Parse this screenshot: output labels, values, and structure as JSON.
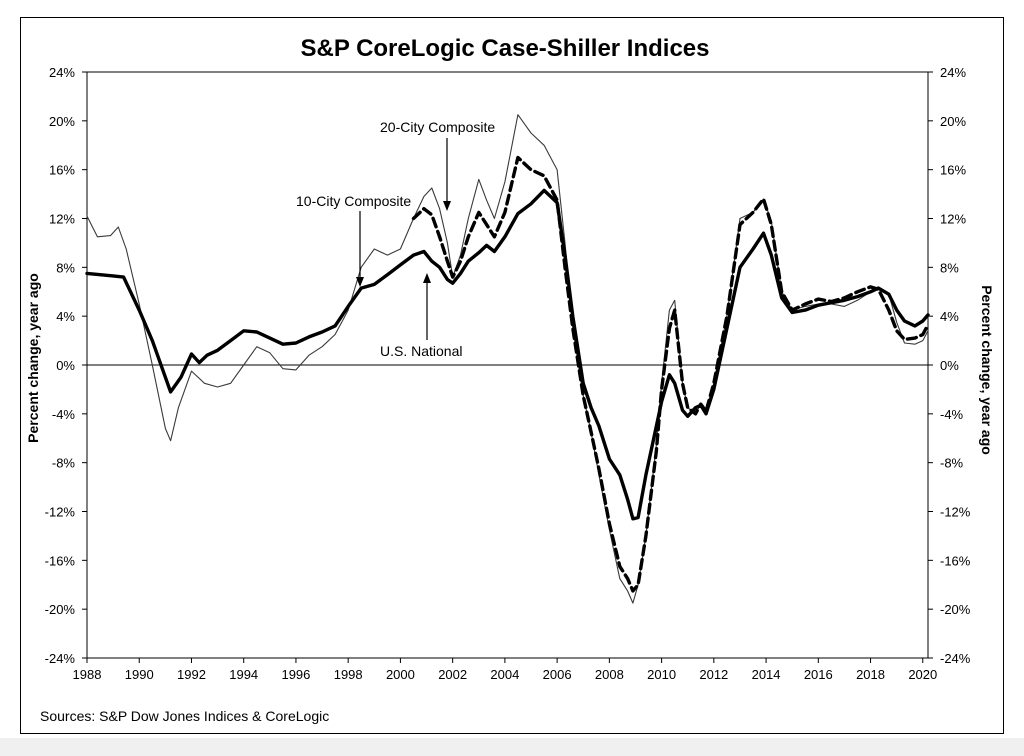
{
  "chart_data": {
    "type": "line",
    "title": "S&P CoreLogic Case-Shiller Indices",
    "ylabel_left": "Percent change, year ago",
    "ylabel_right": "Percent change, year ago",
    "source": "Sources:  S&P Dow Jones Indices & CoreLogic",
    "xlim": [
      1988,
      2020.2
    ],
    "ylim": [
      -24,
      24
    ],
    "x_ticks": [
      1988,
      1990,
      1992,
      1994,
      1996,
      1998,
      2000,
      2002,
      2004,
      2006,
      2008,
      2010,
      2012,
      2014,
      2016,
      2018,
      2020
    ],
    "y_ticks": [
      -24,
      -20,
      -16,
      -12,
      -8,
      -4,
      0,
      4,
      8,
      12,
      16,
      20,
      24
    ],
    "y_tick_format": "percent",
    "grid": false,
    "annotations": [
      {
        "text": "20-City Composite",
        "target_x": 2001.8,
        "target_y": 12.8
      },
      {
        "text": "10-City Composite",
        "target_x": 1998.4,
        "target_y": 6.2
      },
      {
        "text": "U.S. National",
        "target_x": 2001.0,
        "target_y": 7.5
      }
    ],
    "series": [
      {
        "name": "U.S. National",
        "style": "thick",
        "x": [
          1988.0,
          1989.0,
          1989.4,
          1990.0,
          1990.5,
          1991.2,
          1991.6,
          1992.0,
          1992.3,
          1992.6,
          1993.0,
          1993.5,
          1994.0,
          1994.5,
          1995.0,
          1995.5,
          1996.0,
          1996.5,
          1997.0,
          1997.5,
          1998.0,
          1998.5,
          1999.0,
          1999.5,
          2000.0,
          2000.5,
          2000.9,
          2001.2,
          2001.5,
          2001.8,
          2002.0,
          2002.3,
          2002.6,
          2003.0,
          2003.3,
          2003.6,
          2004.0,
          2004.5,
          2005.0,
          2005.5,
          2006.0,
          2006.3,
          2006.6,
          2007.0,
          2007.3,
          2007.6,
          2008.0,
          2008.4,
          2008.7,
          2008.9,
          2009.1,
          2009.4,
          2009.8,
          2010.0,
          2010.3,
          2010.5,
          2010.8,
          2011.0,
          2011.3,
          2011.5,
          2011.7,
          2012.0,
          2012.5,
          2013.0,
          2013.5,
          2013.9,
          2014.2,
          2014.6,
          2015.0,
          2015.5,
          2016.0,
          2016.5,
          2017.0,
          2017.5,
          2018.0,
          2018.3,
          2018.7,
          2019.0,
          2019.3,
          2019.7,
          2020.0,
          2020.2
        ],
        "values": [
          7.5,
          7.3,
          7.2,
          4.5,
          2.0,
          -2.2,
          -1.0,
          0.9,
          0.2,
          0.8,
          1.2,
          2.0,
          2.8,
          2.7,
          2.2,
          1.7,
          1.8,
          2.3,
          2.7,
          3.2,
          4.8,
          6.3,
          6.6,
          7.4,
          8.2,
          9.0,
          9.3,
          8.5,
          8.0,
          7.0,
          6.7,
          7.5,
          8.5,
          9.2,
          9.8,
          9.3,
          10.5,
          12.4,
          13.2,
          14.3,
          13.3,
          9.0,
          4.0,
          -1.5,
          -3.5,
          -5.0,
          -7.7,
          -9.0,
          -11.0,
          -12.6,
          -12.5,
          -9.0,
          -5.0,
          -3.0,
          -0.8,
          -1.5,
          -3.7,
          -4.2,
          -3.5,
          -3.3,
          -4.0,
          -2.0,
          3.0,
          8.0,
          9.5,
          10.8,
          9.0,
          5.5,
          4.3,
          4.5,
          4.9,
          5.1,
          5.3,
          5.6,
          6.0,
          6.3,
          5.8,
          4.5,
          3.6,
          3.2,
          3.6,
          4.1
        ]
      },
      {
        "name": "20-City Composite",
        "style": "dashed",
        "x": [
          2000.5,
          2000.9,
          2001.2,
          2001.5,
          2001.8,
          2002.0,
          2002.3,
          2002.6,
          2003.0,
          2003.3,
          2003.6,
          2004.0,
          2004.5,
          2005.0,
          2005.5,
          2006.0,
          2006.3,
          2006.6,
          2007.0,
          2007.3,
          2007.6,
          2008.0,
          2008.4,
          2008.7,
          2008.9,
          2009.1,
          2009.4,
          2009.8,
          2010.0,
          2010.3,
          2010.5,
          2010.8,
          2011.0,
          2011.3,
          2011.5,
          2011.7,
          2012.0,
          2012.5,
          2013.0,
          2013.5,
          2013.9,
          2014.2,
          2014.6,
          2015.0,
          2015.5,
          2016.0,
          2016.5,
          2017.0,
          2017.5,
          2018.0,
          2018.3,
          2018.7,
          2019.0,
          2019.3,
          2019.7,
          2020.0,
          2020.2
        ],
        "values": [
          12.0,
          12.8,
          12.3,
          10.5,
          8.5,
          7.2,
          8.5,
          10.5,
          12.5,
          11.5,
          10.5,
          12.5,
          17.0,
          16.0,
          15.5,
          13.5,
          8.0,
          3.0,
          -2.5,
          -5.5,
          -8.5,
          -13.0,
          -16.5,
          -17.5,
          -18.5,
          -18.0,
          -14.0,
          -7.0,
          -2.0,
          3.0,
          4.5,
          -1.5,
          -3.5,
          -4.0,
          -3.2,
          -3.8,
          -1.5,
          4.0,
          11.5,
          12.5,
          13.6,
          11.5,
          6.0,
          4.5,
          5.0,
          5.4,
          5.2,
          5.5,
          6.0,
          6.4,
          6.2,
          4.5,
          2.8,
          2.1,
          2.2,
          2.5,
          3.3
        ]
      },
      {
        "name": "10-City Composite",
        "style": "thin",
        "x": [
          1988.0,
          1988.4,
          1988.9,
          1989.2,
          1989.5,
          1990.0,
          1990.5,
          1991.0,
          1991.2,
          1991.5,
          1992.0,
          1992.5,
          1993.0,
          1993.5,
          1994.0,
          1994.5,
          1995.0,
          1995.5,
          1996.0,
          1996.5,
          1997.0,
          1997.5,
          1998.0,
          1998.5,
          1999.0,
          1999.5,
          2000.0,
          2000.5,
          2000.9,
          2001.2,
          2001.5,
          2001.8,
          2002.0,
          2002.3,
          2002.6,
          2003.0,
          2003.3,
          2003.6,
          2004.0,
          2004.5,
          2005.0,
          2005.5,
          2006.0,
          2006.3,
          2006.6,
          2007.0,
          2007.3,
          2007.6,
          2008.0,
          2008.4,
          2008.7,
          2008.9,
          2009.1,
          2009.4,
          2009.8,
          2010.0,
          2010.3,
          2010.5,
          2010.8,
          2011.0,
          2011.3,
          2011.5,
          2011.7,
          2012.0,
          2012.5,
          2013.0,
          2013.5,
          2013.9,
          2014.2,
          2014.6,
          2015.0,
          2015.5,
          2016.0,
          2016.5,
          2017.0,
          2017.5,
          2018.0,
          2018.3,
          2018.7,
          2019.0,
          2019.3,
          2019.7,
          2020.0,
          2020.2
        ],
        "values": [
          12.2,
          10.5,
          10.6,
          11.3,
          9.5,
          5.0,
          0.0,
          -5.2,
          -6.2,
          -3.5,
          -0.5,
          -1.5,
          -1.8,
          -1.5,
          0.0,
          1.5,
          1.0,
          -0.3,
          -0.4,
          0.8,
          1.5,
          2.5,
          4.5,
          8.0,
          9.5,
          9.0,
          9.5,
          12.0,
          13.8,
          14.5,
          12.8,
          10.0,
          7.2,
          9.0,
          12.0,
          15.2,
          13.5,
          12.0,
          15.0,
          20.5,
          19.0,
          18.0,
          16.0,
          10.0,
          3.0,
          -2.5,
          -5.5,
          -9.0,
          -13.5,
          -17.5,
          -18.5,
          -19.5,
          -18.0,
          -14.0,
          -6.5,
          -1.5,
          4.5,
          5.3,
          -1.5,
          -3.5,
          -4.0,
          -3.2,
          -3.8,
          -1.5,
          4.0,
          12.0,
          12.5,
          13.6,
          11.8,
          6.0,
          4.5,
          4.8,
          5.0,
          5.0,
          4.8,
          5.3,
          6.0,
          6.4,
          5.8,
          3.5,
          1.8,
          1.7,
          2.0,
          2.8
        ]
      }
    ]
  }
}
